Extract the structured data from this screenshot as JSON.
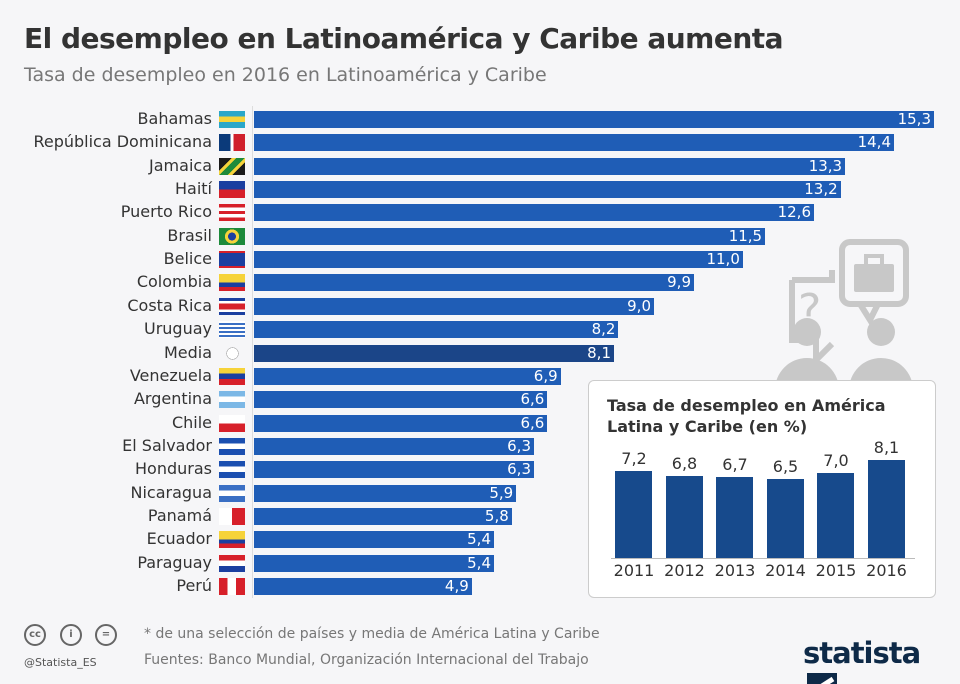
{
  "title": "El desempleo en Latinoamérica y Caribe aumenta",
  "subtitle": "Tasa de desempleo en 2016 en Latinoamérica y Caribe",
  "chart_data": [
    {
      "type": "bar",
      "orientation": "horizontal",
      "categories": [
        "Bahamas",
        "República Dominicana",
        "Jamaica",
        "Haití",
        "Puerto Rico",
        "Brasil",
        "Belice",
        "Colombia",
        "Costa Rica",
        "Uruguay",
        "Media",
        "Venezuela",
        "Argentina",
        "Chile",
        "El Salvador",
        "Honduras",
        "Nicaragua",
        "Panamá",
        "Ecuador",
        "Paraguay",
        "Perú"
      ],
      "values": [
        15.3,
        14.4,
        13.3,
        13.2,
        12.6,
        11.5,
        11.0,
        9.9,
        9.0,
        8.2,
        8.1,
        6.9,
        6.6,
        6.6,
        6.3,
        6.3,
        5.9,
        5.8,
        5.4,
        5.4,
        4.9
      ],
      "value_labels": [
        "15,3",
        "14,4",
        "13,3",
        "13,2",
        "12,6",
        "11,5",
        "11,0",
        "9,9",
        "9,0",
        "8,2",
        "8,1",
        "6,9",
        "6,6",
        "6,6",
        "6,3",
        "6,3",
        "5,9",
        "5,8",
        "5,4",
        "5,4",
        "4,9"
      ],
      "highlight": "Media",
      "xlim": [
        0,
        15.3
      ],
      "grid": false,
      "colors": {
        "bar": "#1f5db6",
        "highlight": "#1b4588"
      }
    },
    {
      "type": "bar",
      "title": "Tasa de desempleo en América Latina y Caribe (en %)",
      "categories": [
        "2011",
        "2012",
        "2013",
        "2014",
        "2015",
        "2016"
      ],
      "values": [
        7.2,
        6.8,
        6.7,
        6.5,
        7.0,
        8.1
      ],
      "value_labels": [
        "7,2",
        "6,8",
        "6,7",
        "6,5",
        "7,0",
        "8,1"
      ],
      "ylim": [
        0,
        8.1
      ],
      "grid": false,
      "colors": {
        "bar": "#174a8c"
      }
    }
  ],
  "footer": {
    "note": "* de una selección de países y media de América Latina y Caribe",
    "source": "Fuentes: Banco Mundial, Organización Internacional del Trabajo",
    "handle": "@Statista_ES",
    "logo": "statista",
    "cc_icons": [
      "cc",
      "i",
      "="
    ]
  },
  "icons": [
    "flag-icons",
    "globe-icon",
    "question-speech-bubble-icon",
    "briefcase-speech-bubble-icon",
    "people-icon"
  ]
}
